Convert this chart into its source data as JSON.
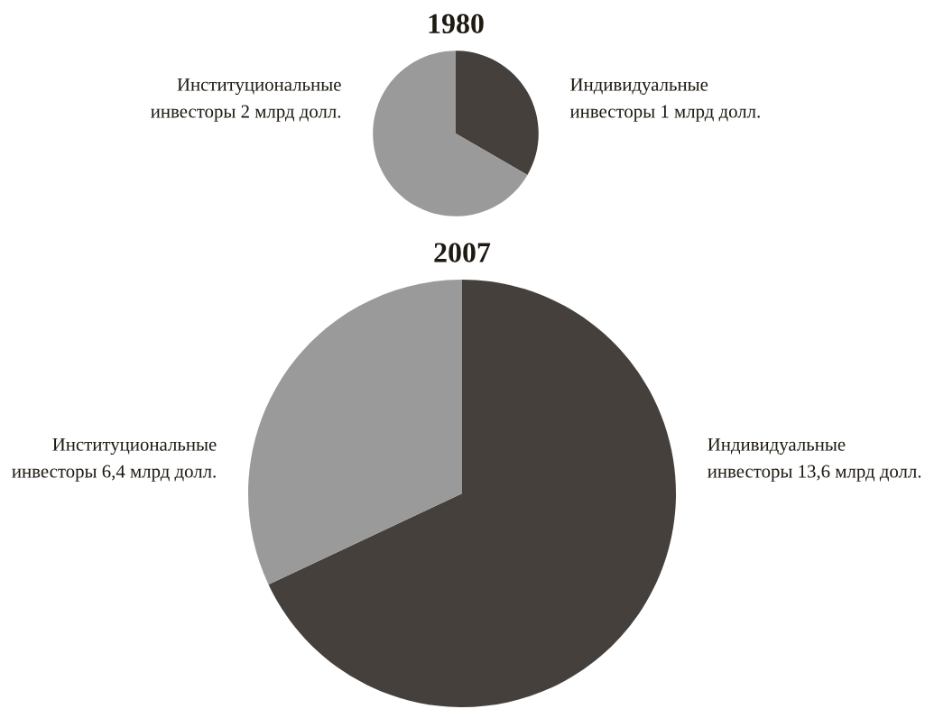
{
  "chart_data": [
    {
      "type": "pie",
      "title": "1980",
      "categories": [
        "Индивидуальные\nинвесторы 1 млрд долл.",
        "Институциональные\nинвесторы 2 млрд долл."
      ],
      "values": [
        1,
        2
      ],
      "colors": [
        "#45403b",
        "#9a9a9a"
      ]
    },
    {
      "type": "pie",
      "title": "2007",
      "categories": [
        "Индивидуальные\nинвесторы 13,6 млрд долл.",
        "Институциональные\nинвесторы 6,4 млрд долл."
      ],
      "values": [
        13.6,
        6.4
      ],
      "colors": [
        "#45403b",
        "#9a9a9a"
      ]
    }
  ]
}
